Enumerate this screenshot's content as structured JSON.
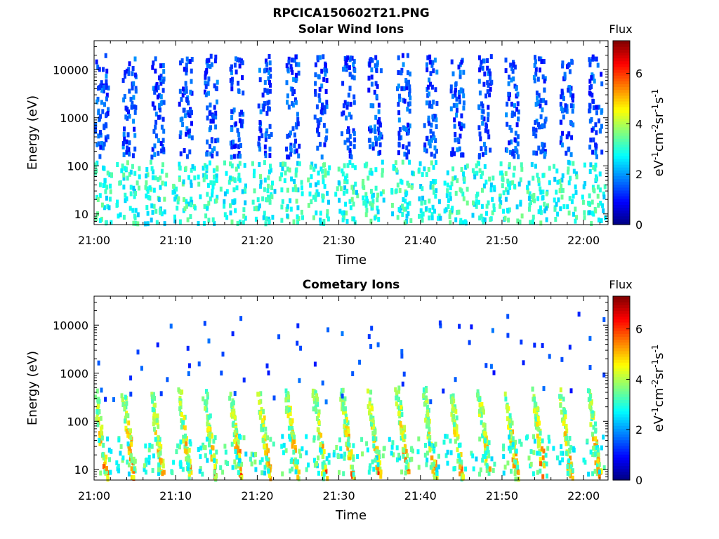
{
  "figure": {
    "title": "RPCICA150602T21.PNG"
  },
  "chart_data": [
    {
      "type": "heatmap",
      "title": "Solar Wind Ions",
      "xlabel": "Time",
      "ylabel": "Energy (eV)",
      "y_scale": "log",
      "xlim": [
        "21:00",
        "22:03"
      ],
      "ylim": [
        6,
        40000
      ],
      "x_ticks": [
        "21:00",
        "21:10",
        "21:20",
        "21:30",
        "21:40",
        "21:50",
        "22:00"
      ],
      "y_ticks": [
        "10",
        "100",
        "1000",
        "10000"
      ],
      "y_tick_values": [
        10,
        100,
        1000,
        10000
      ],
      "colorbar": {
        "title": "Flux",
        "label": "eV-1cm-2sr-1s-1",
        "range": [
          0,
          7.3
        ],
        "ticks": [
          "0",
          "2",
          "4",
          "6"
        ],
        "tick_values": [
          0,
          2,
          4,
          6
        ],
        "colormap": "jet"
      },
      "description_of_data": "Sparse high-energy blue pixels (100-20000 eV, flux ~1-2) in ~18 vertical bands, denser cyan/green pixels at low energy (6-100 eV, flux ~2.5-3.5)",
      "band_start_minutes": [
        0,
        3.4,
        6.9,
        10.3,
        13.4,
        16.5,
        20,
        23.4,
        26.8,
        30.2,
        33.5,
        37,
        40.3,
        43.6,
        47,
        50.3,
        53.7,
        57,
        60.5
      ],
      "high_energy_band": {
        "energy_min": 150,
        "energy_max": 20000,
        "flux_range": [
          0.9,
          2.0
        ]
      },
      "low_energy_band": {
        "energy_min": 6,
        "energy_max": 120,
        "flux_range": [
          2.3,
          3.6
        ]
      }
    },
    {
      "type": "heatmap",
      "title": "Cometary Ions",
      "xlabel": "Time",
      "ylabel": "Energy (eV)",
      "y_scale": "log",
      "xlim": [
        "21:00",
        "22:03"
      ],
      "ylim": [
        6,
        40000
      ],
      "x_ticks": [
        "21:00",
        "21:10",
        "21:20",
        "21:30",
        "21:40",
        "21:50",
        "22:00"
      ],
      "y_ticks": [
        "10",
        "100",
        "1000",
        "10000"
      ],
      "y_tick_values": [
        10,
        100,
        1000,
        10000
      ],
      "colorbar": {
        "title": "Flux",
        "label": "eV-1cm-2sr-1s-1",
        "range": [
          0,
          7.3
        ],
        "ticks": [
          "0",
          "2",
          "4",
          "6"
        ],
        "tick_values": [
          0,
          2,
          4,
          6
        ],
        "colormap": "jet"
      },
      "description_of_data": "Curved dispersion features repeating ~every 3.4 minutes, energy descending from ~400 eV to ~10 eV with flux ~3-6; sparse blue points at high energy",
      "band_start_minutes": [
        0,
        3.4,
        6.9,
        10.3,
        13.4,
        16.5,
        20,
        23.4,
        26.8,
        30.2,
        33.5,
        37,
        40.3,
        43.6,
        47,
        50.3,
        53.7,
        57,
        60.5
      ],
      "dispersion": {
        "energy_top": 400,
        "energy_bottom": 6,
        "flux_range": [
          3.0,
          6.2
        ]
      }
    }
  ]
}
